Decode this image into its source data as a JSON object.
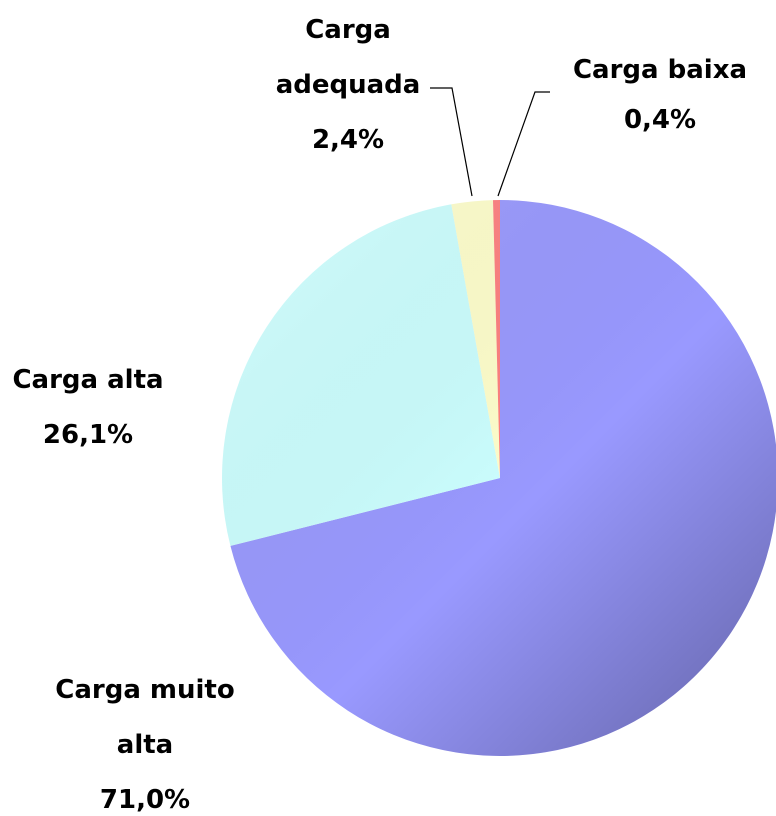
{
  "chart_data": {
    "type": "pie",
    "categories": [
      "Carga muito alta",
      "Carga alta",
      "Carga adequada",
      "Carga baixa"
    ],
    "values": [
      71.0,
      26.1,
      2.4,
      0.4
    ],
    "value_labels": [
      "71,0%",
      "26,1%",
      "2,4%",
      "0,4%"
    ],
    "colors": [
      "#9999ff",
      "#ccffff",
      "#ffffcc",
      "#ff8080"
    ]
  }
}
